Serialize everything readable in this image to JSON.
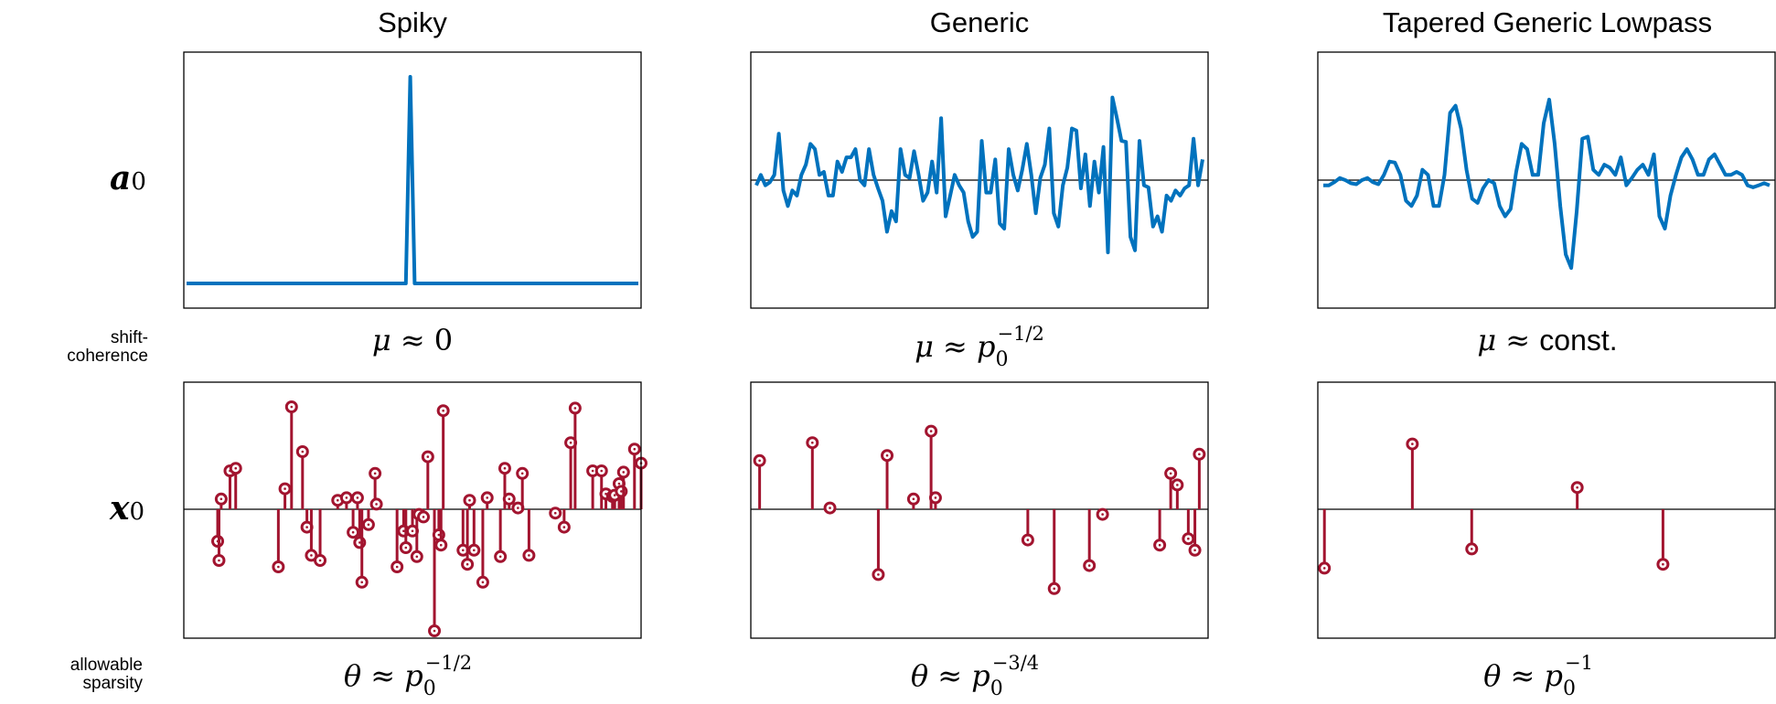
{
  "columns": [
    {
      "title": "Spiky"
    },
    {
      "title": "Generic"
    },
    {
      "title": "Tapered Generic Lowpass"
    }
  ],
  "rows": {
    "signal": {
      "symbol": "a",
      "subscript": "0"
    },
    "coefficient": {
      "symbol": "x",
      "subscript": "0"
    },
    "shift_coherence_label": [
      "shift-",
      "coherence"
    ],
    "sparsity_label": [
      "allowable",
      "sparsity"
    ]
  },
  "formulas": {
    "coherence": [
      {
        "lhs": "μ ≈ ",
        "value": "0"
      },
      {
        "lhs": "μ ≈ ",
        "base": "p",
        "sub": "0",
        "sup": "−1/2"
      },
      {
        "lhs": "μ ≈ ",
        "value": "const."
      }
    ],
    "sparsity": [
      {
        "lhs": "θ ≈ ",
        "base": "p",
        "sub": "0",
        "sup": "−1/2"
      },
      {
        "lhs": "θ ≈ ",
        "base": "p",
        "sub": "0",
        "sup": "−3/4"
      },
      {
        "lhs": "θ ≈ ",
        "base": "p",
        "sub": "0",
        "sup": "−1"
      }
    ]
  },
  "colors": {
    "signal": "#0072bd",
    "coefficient": "#a2142f",
    "axis": "#000000"
  },
  "chart_data": [
    {
      "type": "line",
      "panel": "Spiky a0",
      "ylim": [
        -1,
        1
      ],
      "values": [
        -1,
        -1,
        -1,
        -1,
        -1,
        -1,
        -1,
        -1,
        -1,
        -1,
        -1,
        -1,
        -1,
        -1,
        -1,
        -1,
        -1,
        -1,
        -1,
        -1,
        -1,
        -1,
        -1,
        -1,
        -1,
        -1,
        -1,
        -1,
        -1,
        -1,
        -1,
        -1,
        -1,
        -1,
        -1,
        -1,
        -1,
        -1,
        -1,
        -1,
        -1,
        -1,
        -1,
        -1,
        -1,
        -1,
        -1,
        -1,
        -1,
        -1,
        -1,
        1,
        -1,
        -1,
        -1,
        -1,
        -1,
        -1,
        -1,
        -1,
        -1,
        -1,
        -1,
        -1,
        -1,
        -1,
        -1,
        -1,
        -1,
        -1,
        -1,
        -1,
        -1,
        -1,
        -1,
        -1,
        -1,
        -1,
        -1,
        -1,
        -1,
        -1,
        -1,
        -1,
        -1,
        -1,
        -1,
        -1,
        -1,
        -1,
        -1,
        -1,
        -1,
        -1,
        -1,
        -1,
        -1,
        -1,
        -1,
        -1,
        -1,
        -1,
        -1,
        -1
      ]
    },
    {
      "type": "line",
      "panel": "Generic a0",
      "ylim": [
        -1,
        1
      ],
      "values": [
        -0.05,
        0.05,
        -0.05,
        -0.02,
        0.05,
        0.45,
        -0.1,
        -0.25,
        -0.1,
        -0.15,
        0.05,
        0.15,
        0.35,
        0.3,
        0.05,
        0.08,
        -0.15,
        -0.15,
        0.18,
        0.08,
        0.22,
        0.22,
        0.3,
        0,
        -0.05,
        0.3,
        0.05,
        -0.08,
        -0.2,
        -0.5,
        -0.3,
        -0.4,
        0.3,
        0.05,
        0.02,
        0.28,
        0.05,
        -0.2,
        -0.12,
        0.18,
        -0.12,
        0.6,
        -0.35,
        -0.15,
        0.05,
        -0.05,
        -0.12,
        -0.4,
        -0.55,
        -0.5,
        0.38,
        -0.12,
        -0.12,
        0.2,
        -0.42,
        -0.47,
        0.3,
        0.05,
        -0.1,
        0.1,
        0.35,
        0.05,
        -0.32,
        0.02,
        0.15,
        0.5,
        -0.32,
        -0.45,
        -0.05,
        0.12,
        0.5,
        0.48,
        -0.08,
        0.25,
        -0.25,
        0.18,
        -0.12,
        0.32,
        -0.7,
        0.8,
        0.6,
        0.38,
        0.37,
        -0.55,
        -0.68,
        0.38,
        -0.05,
        -0.07,
        -0.45,
        -0.35,
        -0.5,
        -0.15,
        -0.2,
        -0.1,
        -0.15,
        -0.08,
        -0.05,
        0.4,
        -0.05,
        0.2
      ]
    },
    {
      "type": "line",
      "panel": "Tapered Generic Lowpass a0",
      "ylim": [
        -1,
        1
      ],
      "values": [
        -0.05,
        -0.05,
        -0.02,
        0.02,
        0,
        -0.03,
        -0.04,
        0,
        0.02,
        -0.02,
        -0.04,
        0.05,
        0.18,
        0.17,
        0.05,
        -0.2,
        -0.25,
        -0.15,
        0.1,
        0.05,
        -0.25,
        -0.25,
        0.05,
        0.65,
        0.72,
        0.5,
        0.1,
        -0.18,
        -0.22,
        -0.08,
        0,
        -0.03,
        -0.25,
        -0.35,
        -0.28,
        0.08,
        0.35,
        0.3,
        0.05,
        0.05,
        0.55,
        0.78,
        0.35,
        -0.25,
        -0.72,
        -0.85,
        -0.3,
        0.4,
        0.42,
        0.1,
        0.05,
        0.15,
        0.12,
        0.05,
        0.22,
        -0.05,
        0.02,
        0.1,
        0.15,
        0.05,
        0.25,
        -0.35,
        -0.47,
        -0.15,
        0.05,
        0.22,
        0.3,
        0.2,
        0.05,
        0.05,
        0.2,
        0.25,
        0.15,
        0.05,
        0.05,
        0.08,
        0.05,
        -0.05,
        -0.07,
        -0.05,
        -0.03,
        -0.05
      ]
    },
    {
      "type": "stem",
      "panel": "Spiky x0",
      "ylim": [
        -1,
        1
      ],
      "x": [
        7.7,
        8.0,
        8.5,
        10.5,
        11.8,
        21.5,
        23.0,
        24.5,
        27.0,
        28.0,
        29.0,
        31.0,
        35.0,
        37.0,
        38.5,
        39.5,
        40.0,
        40.5,
        42.0,
        43.5,
        43.8,
        48.5,
        50.0,
        50.5,
        52.0,
        53.0,
        53.5,
        54.5,
        55.5,
        57.0,
        58.0,
        58.5,
        59.0,
        63.5,
        64.5,
        65.0,
        66.0,
        68.0,
        69.0,
        72.0,
        73.0,
        74.0,
        76.0,
        77.0,
        78.5,
        84.5,
        86.5,
        88.0,
        89.0,
        93.0,
        95.0,
        96.0,
        97.5,
        98.0,
        99.0,
        99.5,
        100.0,
        102.5,
        104.0
      ],
      "values": [
        -0.25,
        -0.4,
        0.08,
        0.3,
        0.32,
        -0.45,
        0.16,
        0.8,
        0.45,
        -0.14,
        -0.36,
        -0.4,
        0.07,
        0.09,
        -0.18,
        0.09,
        -0.26,
        -0.57,
        -0.12,
        0.28,
        0.04,
        -0.45,
        -0.17,
        -0.3,
        -0.17,
        -0.37,
        -0.04,
        -0.06,
        0.41,
        -0.95,
        -0.2,
        -0.28,
        0.77,
        -0.32,
        -0.43,
        0.07,
        -0.32,
        -0.57,
        0.09,
        -0.37,
        0.32,
        0.08,
        0.01,
        0.28,
        -0.36,
        -0.03,
        -0.14,
        0.52,
        0.79,
        0.3,
        0.3,
        0.12,
        0.1,
        0.11,
        0.2,
        0.14,
        0.29,
        0.47,
        0.36
      ]
    },
    {
      "type": "stem",
      "panel": "Generic x0",
      "ylim": [
        -1,
        1
      ],
      "x": [
        2,
        14,
        18,
        29,
        31,
        37,
        41,
        42,
        63,
        69,
        77,
        80,
        93,
        95.5,
        97,
        99.5,
        101,
        102
      ],
      "values": [
        0.38,
        0.52,
        0.01,
        -0.51,
        0.42,
        0.08,
        0.61,
        0.09,
        -0.24,
        -0.62,
        -0.44,
        -0.04,
        -0.28,
        0.28,
        0.19,
        -0.23,
        -0.32,
        0.43
      ]
    },
    {
      "type": "stem",
      "panel": "Tapered Generic Lowpass x0",
      "ylim": [
        -1,
        1
      ],
      "x": [
        1.5,
        21.5,
        35,
        59,
        78.5
      ],
      "values": [
        -0.46,
        0.51,
        -0.31,
        0.17,
        -0.43
      ]
    }
  ]
}
